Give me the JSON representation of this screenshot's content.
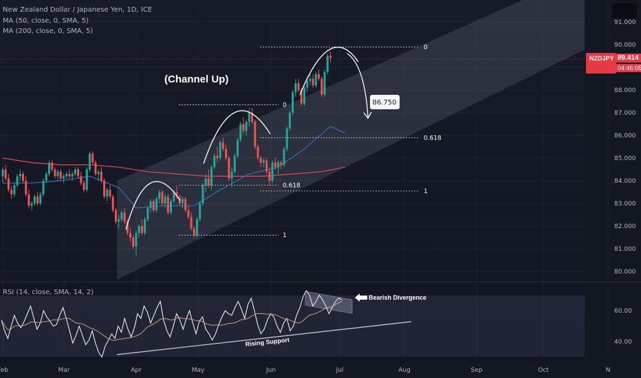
{
  "header": {
    "title": "New Zealand Dollar / Japanese Yen, 1D, ICE",
    "ma50_label": "MA (50, close, 0, SMA, 5)",
    "ma200_label": "MA (200, close, 0, SMA, 5)",
    "rsi_label": "RSI (14, close, SMA, 14, 2)"
  },
  "price_tag": {
    "symbol": "NZDJPY",
    "value": "89.414",
    "countdown": "04:46:05",
    "color": "#e53945"
  },
  "chart_data": {
    "type": "candlestick",
    "x_labels": [
      "Feb",
      "Mar",
      "Apr",
      "May",
      "Jun",
      "Jul",
      "Aug",
      "Sep",
      "Oct",
      "N"
    ],
    "price_axis": {
      "ticks": [
        "91.000",
        "90.000",
        "89.000",
        "88.000",
        "87.000",
        "86.000",
        "85.000",
        "84.000",
        "83.000",
        "82.000",
        "81.000",
        "80.000"
      ],
      "range": [
        79.6,
        91.6
      ]
    },
    "rsi_axis": {
      "ticks": [
        "60.00",
        "40.00"
      ],
      "range": [
        26,
        76
      ]
    },
    "candles": [
      [
        84.2,
        84.6,
        83.9,
        84.5
      ],
      [
        84.5,
        84.7,
        84.0,
        84.1
      ],
      [
        84.1,
        84.3,
        83.5,
        83.6
      ],
      [
        83.6,
        83.8,
        83.2,
        83.4
      ],
      [
        83.4,
        83.9,
        83.3,
        83.8
      ],
      [
        83.8,
        84.3,
        83.7,
        84.2
      ],
      [
        84.2,
        84.5,
        84.0,
        84.3
      ],
      [
        84.3,
        84.4,
        83.9,
        84.0
      ],
      [
        84.0,
        84.2,
        83.3,
        83.4
      ],
      [
        83.4,
        83.6,
        82.8,
        82.9
      ],
      [
        82.9,
        83.1,
        82.7,
        83.0
      ],
      [
        83.0,
        83.4,
        82.9,
        83.3
      ],
      [
        83.3,
        83.5,
        82.9,
        83.0
      ],
      [
        83.0,
        83.5,
        82.9,
        83.4
      ],
      [
        83.4,
        84.1,
        83.3,
        84.0
      ],
      [
        84.0,
        84.4,
        83.9,
        84.3
      ],
      [
        84.3,
        84.9,
        84.2,
        84.8
      ],
      [
        84.8,
        84.9,
        84.4,
        84.5
      ],
      [
        84.5,
        84.6,
        84.1,
        84.2
      ],
      [
        84.2,
        84.5,
        84.0,
        84.4
      ],
      [
        84.4,
        84.5,
        84.0,
        84.1
      ],
      [
        84.1,
        84.3,
        83.9,
        84.2
      ],
      [
        84.2,
        84.4,
        84.1,
        84.3
      ],
      [
        84.3,
        84.5,
        84.1,
        84.2
      ],
      [
        84.2,
        84.4,
        84.0,
        84.3
      ],
      [
        84.3,
        84.6,
        84.2,
        84.5
      ],
      [
        84.5,
        84.6,
        84.1,
        84.2
      ],
      [
        84.2,
        84.4,
        83.8,
        83.9
      ],
      [
        83.9,
        84.0,
        83.5,
        83.6
      ],
      [
        83.6,
        84.6,
        83.5,
        84.5
      ],
      [
        84.5,
        85.3,
        84.4,
        85.2
      ],
      [
        85.2,
        85.3,
        84.7,
        84.8
      ],
      [
        84.8,
        84.9,
        84.2,
        84.3
      ],
      [
        84.3,
        84.5,
        84.0,
        84.4
      ],
      [
        84.4,
        84.6,
        83.9,
        84.0
      ],
      [
        84.0,
        84.1,
        83.2,
        83.3
      ],
      [
        83.3,
        83.7,
        83.1,
        83.6
      ],
      [
        83.6,
        83.8,
        83.2,
        83.3
      ],
      [
        83.3,
        83.4,
        82.6,
        82.7
      ],
      [
        82.7,
        82.8,
        82.1,
        82.2
      ],
      [
        82.2,
        82.5,
        81.9,
        82.3
      ],
      [
        82.3,
        82.7,
        82.2,
        82.6
      ],
      [
        82.6,
        82.8,
        82.1,
        82.2
      ],
      [
        82.2,
        82.3,
        81.6,
        81.7
      ],
      [
        81.7,
        81.9,
        81.3,
        81.5
      ],
      [
        81.5,
        81.6,
        81.0,
        81.1
      ],
      [
        81.1,
        81.8,
        80.7,
        81.7
      ],
      [
        81.7,
        82.1,
        81.5,
        82.0
      ],
      [
        82.0,
        82.3,
        81.6,
        81.7
      ],
      [
        81.7,
        82.4,
        81.6,
        82.3
      ],
      [
        82.3,
        82.9,
        82.2,
        82.8
      ],
      [
        82.8,
        83.2,
        82.6,
        83.1
      ],
      [
        83.1,
        83.2,
        82.6,
        82.7
      ],
      [
        82.7,
        83.3,
        82.6,
        83.2
      ],
      [
        83.2,
        83.6,
        83.0,
        83.5
      ],
      [
        83.5,
        83.6,
        82.9,
        83.0
      ],
      [
        83.0,
        83.4,
        82.8,
        83.3
      ],
      [
        83.3,
        83.4,
        82.5,
        82.6
      ],
      [
        82.6,
        83.2,
        82.5,
        83.1
      ],
      [
        83.1,
        83.6,
        83.0,
        83.5
      ],
      [
        83.5,
        83.8,
        83.2,
        83.3
      ],
      [
        83.3,
        83.4,
        82.9,
        83.0
      ],
      [
        83.0,
        83.3,
        82.8,
        83.2
      ],
      [
        83.2,
        83.3,
        82.6,
        82.7
      ],
      [
        82.7,
        82.9,
        82.3,
        82.4
      ],
      [
        82.4,
        82.6,
        81.8,
        81.9
      ],
      [
        81.9,
        82.0,
        81.5,
        81.6
      ],
      [
        81.6,
        82.4,
        81.5,
        82.3
      ],
      [
        82.3,
        83.1,
        82.2,
        83.0
      ],
      [
        83.0,
        83.9,
        82.9,
        83.8
      ],
      [
        83.8,
        84.3,
        83.5,
        84.1
      ],
      [
        84.1,
        84.5,
        83.7,
        83.8
      ],
      [
        83.8,
        84.7,
        83.6,
        84.6
      ],
      [
        84.6,
        85.2,
        84.5,
        85.1
      ],
      [
        85.1,
        85.5,
        84.8,
        85.0
      ],
      [
        85.0,
        85.8,
        84.9,
        85.7
      ],
      [
        85.7,
        85.9,
        85.3,
        85.4
      ],
      [
        85.4,
        85.6,
        84.9,
        85.0
      ],
      [
        85.0,
        85.1,
        84.0,
        84.1
      ],
      [
        84.1,
        84.6,
        83.7,
        84.4
      ],
      [
        84.4,
        85.2,
        84.3,
        85.1
      ],
      [
        85.1,
        85.9,
        85.0,
        85.8
      ],
      [
        85.8,
        86.6,
        85.7,
        86.5
      ],
      [
        86.5,
        86.8,
        86.1,
        86.2
      ],
      [
        86.2,
        86.7,
        86.0,
        86.6
      ],
      [
        86.6,
        87.2,
        86.4,
        87.0
      ],
      [
        87.0,
        87.2,
        86.5,
        86.6
      ],
      [
        86.6,
        86.7,
        85.4,
        85.5
      ],
      [
        85.5,
        85.6,
        84.9,
        85.0
      ],
      [
        85.0,
        85.1,
        84.6,
        84.8
      ],
      [
        84.8,
        85.0,
        84.6,
        84.9
      ],
      [
        84.9,
        85.0,
        84.3,
        84.4
      ],
      [
        84.4,
        84.6,
        83.8,
        84.0
      ],
      [
        84.0,
        84.9,
        83.9,
        84.8
      ],
      [
        84.8,
        85.0,
        84.5,
        84.6
      ],
      [
        84.6,
        84.9,
        84.3,
        84.8
      ],
      [
        84.8,
        84.9,
        84.5,
        84.7
      ],
      [
        84.7,
        85.5,
        84.6,
        85.4
      ],
      [
        85.4,
        86.4,
        85.3,
        86.3
      ],
      [
        86.3,
        87.1,
        86.2,
        87.0
      ],
      [
        87.0,
        88.0,
        86.9,
        87.9
      ],
      [
        87.9,
        88.5,
        87.7,
        88.3
      ],
      [
        88.3,
        88.5,
        87.9,
        88.0
      ],
      [
        88.0,
        88.1,
        87.3,
        87.4
      ],
      [
        87.4,
        88.2,
        87.3,
        88.1
      ],
      [
        88.1,
        88.6,
        87.9,
        88.4
      ],
      [
        88.4,
        88.7,
        88.2,
        88.5
      ],
      [
        88.5,
        88.7,
        88.1,
        88.2
      ],
      [
        88.2,
        88.8,
        88.1,
        88.7
      ],
      [
        88.7,
        88.9,
        88.4,
        88.5
      ],
      [
        88.5,
        88.6,
        87.7,
        87.8
      ],
      [
        87.8,
        88.9,
        87.7,
        88.8
      ],
      [
        88.8,
        89.6,
        88.7,
        89.5
      ],
      [
        89.5,
        89.7,
        89.2,
        89.414
      ]
    ],
    "ma50": [
      [
        0,
        83.9
      ],
      [
        10,
        83.9
      ],
      [
        20,
        84.0
      ],
      [
        30,
        84.2
      ],
      [
        40,
        83.7
      ],
      [
        46,
        82.8
      ],
      [
        55,
        82.9
      ],
      [
        66,
        82.9
      ],
      [
        75,
        83.6
      ],
      [
        85,
        84.3
      ],
      [
        95,
        84.6
      ],
      [
        104,
        85.4
      ],
      [
        113,
        86.4
      ],
      [
        118,
        86.1
      ]
    ],
    "ma200": [
      [
        0,
        85.0
      ],
      [
        10,
        84.8
      ],
      [
        20,
        84.7
      ],
      [
        30,
        84.7
      ],
      [
        40,
        84.6
      ],
      [
        50,
        84.4
      ],
      [
        60,
        84.3
      ],
      [
        70,
        84.2
      ],
      [
        80,
        84.2
      ],
      [
        90,
        84.2
      ],
      [
        100,
        84.3
      ],
      [
        110,
        84.4
      ],
      [
        118,
        84.6
      ]
    ],
    "fib_levels": [
      {
        "label": "0",
        "price": 87.35
      },
      {
        "label": "0.618",
        "price": 83.8
      },
      {
        "label": "1",
        "price": 81.6
      },
      {
        "label": "0",
        "price": 89.9
      },
      {
        "label": "0.618",
        "price": 85.9
      },
      {
        "label": "1",
        "price": 83.55
      }
    ],
    "annotations": {
      "channel": "(Channel Up)",
      "target": "86.750",
      "bearish": "Bearish Divergence",
      "support": "Rising Support"
    },
    "rsi": [
      54,
      47,
      42,
      50,
      57,
      52,
      49,
      53,
      58,
      63,
      55,
      48,
      52,
      60,
      56,
      53,
      50,
      51,
      57,
      62,
      55,
      47,
      39,
      44,
      50,
      44,
      38,
      41,
      47,
      39,
      33,
      30,
      37,
      41,
      45,
      42,
      50,
      46,
      55,
      48,
      43,
      49,
      58,
      55,
      63,
      59,
      52,
      57,
      62,
      66,
      54,
      47,
      43,
      50,
      58,
      54,
      48,
      55,
      60,
      52,
      45,
      53,
      56,
      48,
      45,
      41,
      45,
      51,
      56,
      60,
      58,
      57,
      62,
      66,
      61,
      55,
      64,
      68,
      60,
      51,
      45,
      48,
      54,
      58,
      56,
      50,
      46,
      52,
      55,
      47,
      50,
      57,
      62,
      69,
      73,
      70,
      63,
      66,
      70,
      67,
      63,
      58,
      62,
      66,
      68,
      67
    ]
  },
  "colors": {
    "background": "#131722",
    "up": "#26a69a",
    "down": "#ef5350",
    "ma50": "#3f69b5",
    "ma200": "#e54b4b",
    "axis_text": "#b2b5be"
  }
}
